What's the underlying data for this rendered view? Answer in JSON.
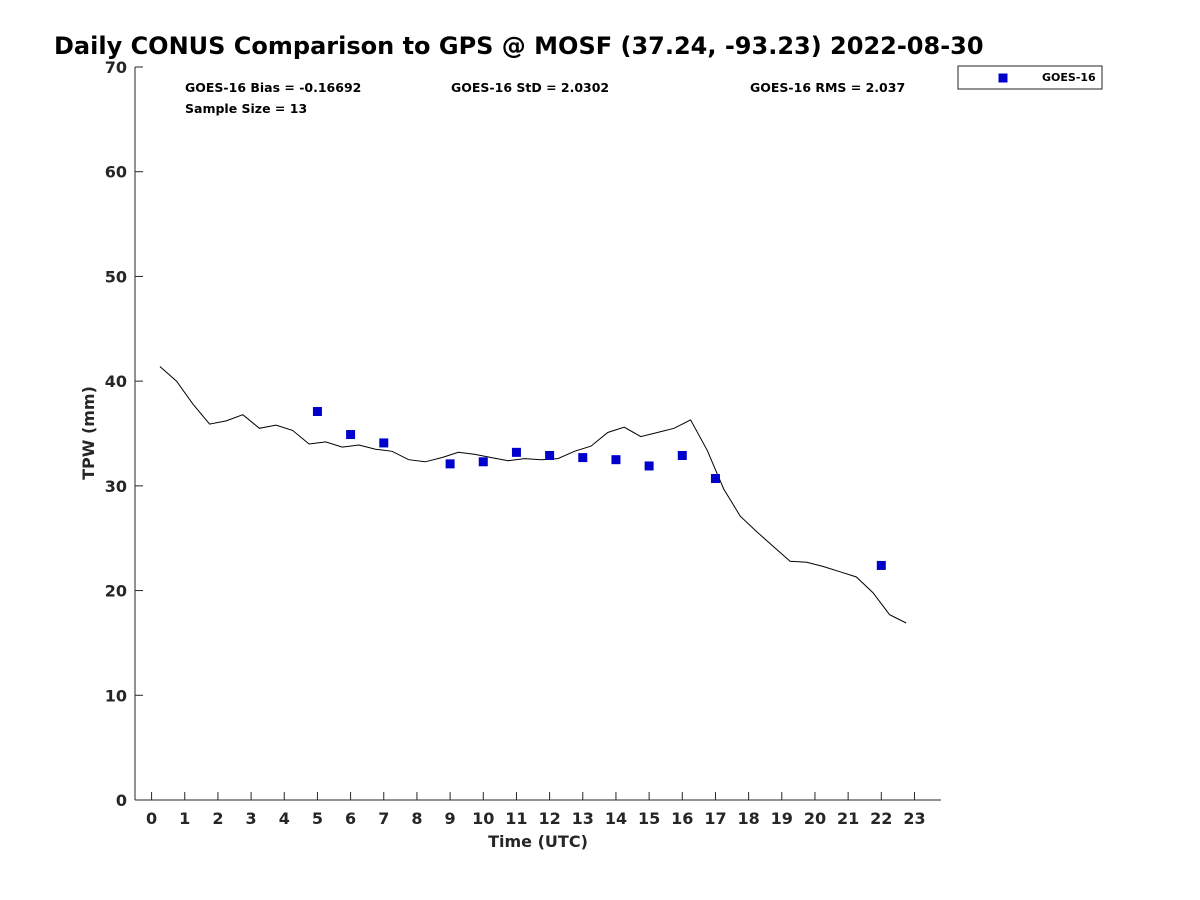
{
  "chart_data": {
    "type": "scatter",
    "title": "Daily CONUS Comparison to GPS @ MOSF (37.24, -93.23) 2022-08-30",
    "xlabel": "Time (UTC)",
    "ylabel": "TPW (mm)",
    "xlim": [
      -0.5,
      23.8
    ],
    "ylim": [
      0,
      70
    ],
    "xticks": [
      0,
      1,
      2,
      3,
      4,
      5,
      6,
      7,
      8,
      9,
      10,
      11,
      12,
      13,
      14,
      15,
      16,
      17,
      18,
      19,
      20,
      21,
      22,
      23
    ],
    "yticks": [
      0,
      10,
      20,
      30,
      40,
      50,
      60,
      70
    ],
    "grid": false,
    "legend_position": "top-right, outside plot",
    "stats": {
      "bias": "GOES-16 Bias = -0.16692",
      "std": "GOES-16 StD = 2.0302",
      "rms": "GOES-16 RMS = 2.037",
      "sample_size": "Sample Size = 13"
    },
    "series": [
      {
        "name": "GOES-16",
        "kind": "scatter",
        "marker": "square",
        "color": "#0000cc",
        "x": [
          5,
          6,
          7,
          9,
          10,
          11,
          12,
          13,
          14,
          15,
          16,
          17,
          22
        ],
        "y": [
          37.1,
          34.9,
          34.1,
          32.1,
          32.3,
          33.2,
          32.9,
          32.7,
          32.5,
          31.9,
          32.9,
          30.7,
          22.4
        ]
      },
      {
        "kind": "line",
        "color": "#000000",
        "x": [
          0.25,
          0.75,
          1.25,
          1.75,
          2.25,
          2.75,
          3.25,
          3.75,
          4.25,
          4.75,
          5.25,
          5.75,
          6.25,
          6.75,
          7.25,
          7.75,
          8.25,
          8.75,
          9.25,
          9.75,
          10.25,
          10.75,
          11.25,
          11.75,
          12.25,
          12.75,
          13.25,
          13.75,
          14.25,
          14.75,
          15.25,
          15.75,
          16.25,
          16.75,
          17.25,
          17.75,
          18.25,
          18.75,
          19.25,
          19.75,
          20.25,
          20.75,
          21.25,
          21.75,
          22.25,
          22.75
        ],
        "y": [
          41.4,
          40.0,
          37.8,
          35.9,
          36.2,
          36.8,
          35.5,
          35.8,
          35.3,
          34.0,
          34.2,
          33.7,
          33.9,
          33.5,
          33.3,
          32.5,
          32.3,
          32.7,
          33.2,
          33.0,
          32.7,
          32.4,
          32.6,
          32.5,
          32.6,
          33.3,
          33.8,
          35.1,
          35.6,
          34.7,
          35.1,
          35.5,
          36.3,
          33.4,
          29.7,
          27.1,
          25.6,
          24.2,
          22.8,
          22.7,
          22.3,
          21.8,
          21.3,
          19.8,
          17.7,
          16.9
        ]
      }
    ]
  }
}
